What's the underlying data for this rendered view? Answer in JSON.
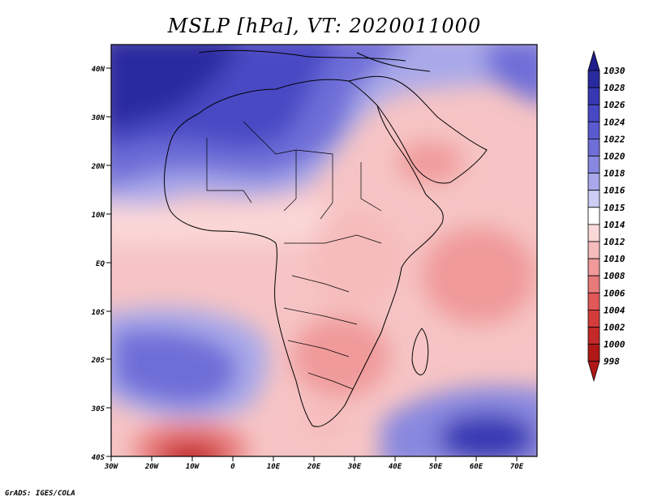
{
  "title": "MSLP [hPa], VT: 2020011000",
  "credit": "GrADS: IGES/COLA",
  "lat_labels": [
    "40N",
    "30N",
    "20N",
    "10N",
    "EQ",
    "10S",
    "20S",
    "30S",
    "40S"
  ],
  "lon_labels": [
    "30W",
    "20W",
    "10W",
    "0",
    "10E",
    "20E",
    "30E",
    "40E",
    "50E",
    "60E",
    "70E"
  ],
  "legend": {
    "levels": [
      "1030",
      "1028",
      "1026",
      "1024",
      "1022",
      "1020",
      "1018",
      "1016",
      "1015",
      "1014",
      "1012",
      "1010",
      "1008",
      "1006",
      "1004",
      "1002",
      "1000",
      "998"
    ],
    "colors": [
      "#1e1e8c",
      "#2a2aa0",
      "#3838b4",
      "#4848c4",
      "#5a5ad0",
      "#6e6ed8",
      "#8888e0",
      "#a8a8ea",
      "#cccdf4",
      "#ffffff",
      "#fbd8d8",
      "#f6bcbc",
      "#f09a9a",
      "#e87a7a",
      "#e05858",
      "#d43c3c",
      "#c42828",
      "#b01818"
    ]
  }
}
